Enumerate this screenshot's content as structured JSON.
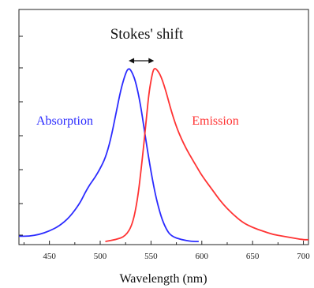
{
  "chart_data": {
    "type": "line",
    "title": "",
    "xlabel": "Wavelength (nm)",
    "ylabel": "",
    "xlim": [
      420,
      705
    ],
    "ylim": [
      0,
      1.06
    ],
    "x_ticks": [
      450,
      500,
      550,
      600,
      650,
      700
    ],
    "x_tick_labels": [
      "450",
      "500",
      "550",
      "600",
      "650",
      "700"
    ],
    "y_minor_ticks": [
      0.14,
      0.29,
      0.43,
      0.57,
      0.71,
      0.86,
      1.0
    ],
    "grid": false,
    "legend": "none",
    "series": [
      {
        "name": "Absorption",
        "color": "#2b2bff",
        "points": [
          [
            420,
            0.03
          ],
          [
            430,
            0.03
          ],
          [
            440,
            0.04
          ],
          [
            450,
            0.06
          ],
          [
            460,
            0.09
          ],
          [
            470,
            0.14
          ],
          [
            480,
            0.22
          ],
          [
            485,
            0.28
          ],
          [
            490,
            0.33
          ],
          [
            495,
            0.37
          ],
          [
            500,
            0.42
          ],
          [
            505,
            0.48
          ],
          [
            510,
            0.58
          ],
          [
            515,
            0.72
          ],
          [
            520,
            0.87
          ],
          [
            525,
            0.97
          ],
          [
            528,
            1.0
          ],
          [
            531,
            0.98
          ],
          [
            535,
            0.92
          ],
          [
            540,
            0.78
          ],
          [
            545,
            0.58
          ],
          [
            550,
            0.4
          ],
          [
            555,
            0.25
          ],
          [
            560,
            0.14
          ],
          [
            565,
            0.07
          ],
          [
            570,
            0.03
          ],
          [
            580,
            0.01
          ],
          [
            590,
            0.0
          ],
          [
            597,
            0.0
          ]
        ]
      },
      {
        "name": "Emission",
        "color": "#ff3333",
        "points": [
          [
            505,
            0.0
          ],
          [
            515,
            0.01
          ],
          [
            525,
            0.03
          ],
          [
            532,
            0.1
          ],
          [
            537,
            0.25
          ],
          [
            541,
            0.45
          ],
          [
            545,
            0.68
          ],
          [
            548,
            0.86
          ],
          [
            551,
            0.96
          ],
          [
            553,
            1.0
          ],
          [
            556,
            0.99
          ],
          [
            560,
            0.95
          ],
          [
            565,
            0.86
          ],
          [
            570,
            0.75
          ],
          [
            575,
            0.66
          ],
          [
            580,
            0.59
          ],
          [
            585,
            0.53
          ],
          [
            590,
            0.48
          ],
          [
            595,
            0.43
          ],
          [
            600,
            0.38
          ],
          [
            610,
            0.3
          ],
          [
            620,
            0.22
          ],
          [
            630,
            0.16
          ],
          [
            640,
            0.11
          ],
          [
            650,
            0.08
          ],
          [
            660,
            0.06
          ],
          [
            670,
            0.04
          ],
          [
            680,
            0.03
          ],
          [
            690,
            0.02
          ],
          [
            700,
            0.01
          ],
          [
            705,
            0.01
          ]
        ]
      }
    ],
    "annotations": [
      {
        "text": "Stokes' shift",
        "x": 540,
        "y": 1.18,
        "role": "heading"
      },
      {
        "text": "Absorption",
        "x": 448,
        "y": 0.71,
        "color": "#2b2bff"
      },
      {
        "text": "Emission",
        "x": 571,
        "y": 0.71,
        "color": "#ff3333"
      }
    ],
    "arrow": {
      "from_x": 528,
      "to_x": 553,
      "y": 1.06
    }
  }
}
